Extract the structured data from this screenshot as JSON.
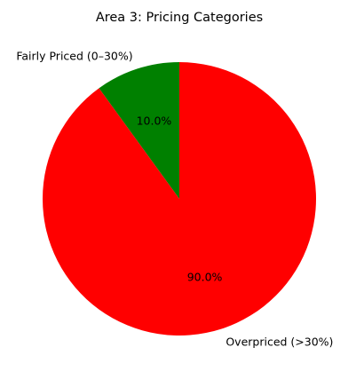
{
  "chart_data": {
    "type": "pie",
    "title": "Area 3: Pricing Categories",
    "slices": [
      {
        "label": "Fairly Priced (0–30%)",
        "value": 10.0,
        "pct_label": "10.0%",
        "color": "#008000"
      },
      {
        "label": "Overpriced (>30%)",
        "value": 90.0,
        "pct_label": "90.0%",
        "color": "#ff0000"
      }
    ],
    "start_angle_deg": 90,
    "direction": "counterclockwise"
  }
}
